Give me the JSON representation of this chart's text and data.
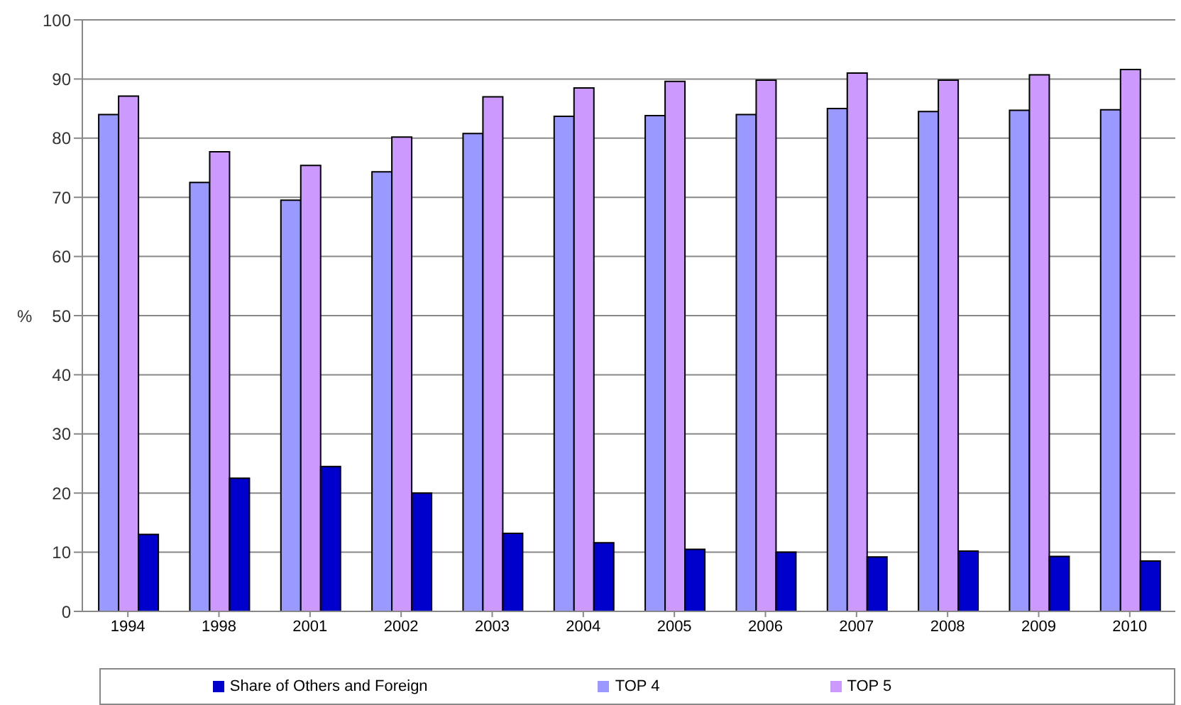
{
  "chart_data": {
    "type": "bar",
    "ylabel": "%",
    "categories": [
      "1994",
      "1998",
      "2001",
      "2002",
      "2003",
      "2004",
      "2005",
      "2006",
      "2007",
      "2008",
      "2009",
      "2010"
    ],
    "series": [
      {
        "name": "TOP 4",
        "color": "#9999ff",
        "values": [
          84,
          72.5,
          69.5,
          74.3,
          80.8,
          83.7,
          83.8,
          84,
          85,
          84.5,
          84.7,
          84.8
        ]
      },
      {
        "name": "TOP 5",
        "color": "#cc99ff",
        "values": [
          87.1,
          77.7,
          75.4,
          80.2,
          87,
          88.5,
          89.6,
          89.8,
          91,
          89.8,
          90.7,
          91.6
        ]
      },
      {
        "name": "Share of Others and Foreign",
        "color": "#0000cc",
        "values": [
          13,
          22.5,
          24.5,
          20,
          13.2,
          11.6,
          10.5,
          10,
          9.2,
          10.2,
          9.3,
          8.5
        ]
      }
    ],
    "ylim": [
      0,
      100
    ],
    "yticks": [
      0,
      10,
      20,
      30,
      40,
      50,
      60,
      70,
      80,
      90,
      100
    ],
    "grid": "y",
    "legend": "bottom"
  }
}
